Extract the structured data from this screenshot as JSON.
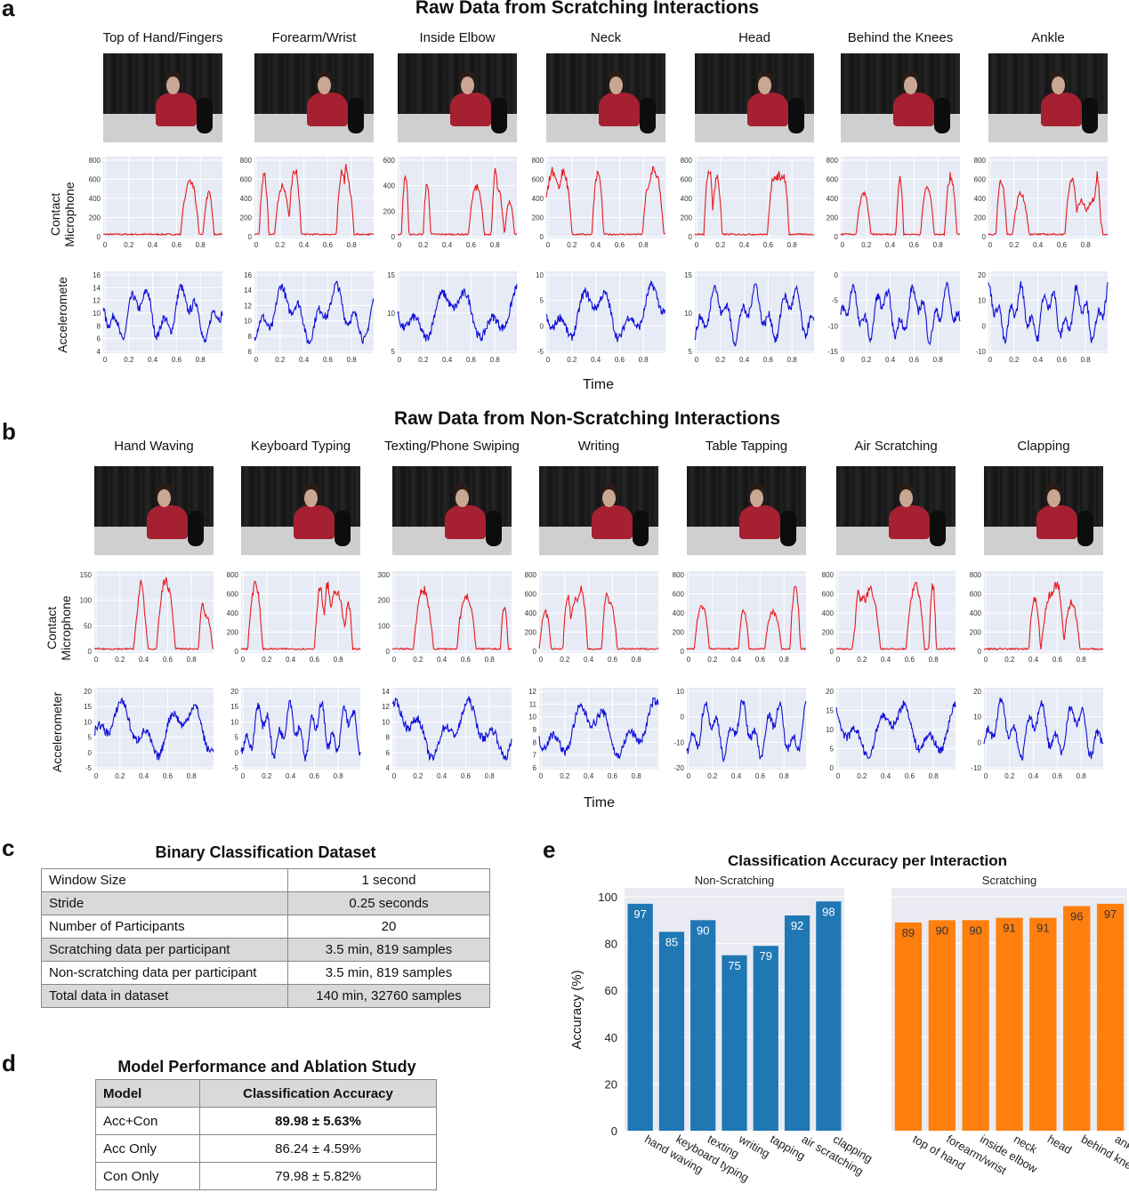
{
  "panel_a": {
    "letter": "a",
    "title": "Raw Data from Scratching Interactions",
    "columns": [
      "Top of Hand/Fingers",
      "Forearm/Wrist",
      "Inside Elbow",
      "Neck",
      "Head",
      "Behind the Knees",
      "Ankle"
    ],
    "row_label_mic_1": "Contact",
    "row_label_mic_2": "Microphone",
    "row_label_acc": "Acceleromete",
    "xlabel": "Time",
    "x_ticks": [
      "0",
      "0.2",
      "0.4",
      "0.6",
      "0.8"
    ],
    "mic_yticks": [
      [
        "0",
        "200",
        "400",
        "600",
        "800"
      ],
      [
        "0",
        "200",
        "400",
        "600",
        "800"
      ],
      [
        "0",
        "200",
        "400",
        "600"
      ],
      [
        "0",
        "200",
        "400",
        "600",
        "800"
      ],
      [
        "0",
        "200",
        "400",
        "600",
        "800"
      ],
      [
        "0",
        "200",
        "400",
        "600",
        "800"
      ],
      [
        "0",
        "200",
        "400",
        "600",
        "800"
      ]
    ],
    "acc_yticks": [
      [
        "4",
        "6",
        "8",
        "10",
        "12",
        "14",
        "16"
      ],
      [
        "6",
        "8",
        "10",
        "12",
        "14",
        "16"
      ],
      [
        "5",
        "10",
        "15"
      ],
      [
        "-5",
        "0",
        "5",
        "10"
      ],
      [
        "5",
        "10",
        "15"
      ],
      [
        "-15",
        "-10",
        "-5",
        "0"
      ],
      [
        "-10",
        "0",
        "10",
        "20"
      ]
    ]
  },
  "panel_b": {
    "letter": "b",
    "title": "Raw Data from Non-Scratching Interactions",
    "columns": [
      "Hand Waving",
      "Keyboard Typing",
      "Texting/Phone Swiping",
      "Writing",
      "Table Tapping",
      "Air Scratching",
      "Clapping"
    ],
    "row_label_mic_1": "Contact",
    "row_label_mic_2": "Microphone",
    "row_label_acc": "Accelerometer",
    "xlabel": "Time",
    "x_ticks": [
      "0",
      "0.2",
      "0.4",
      "0.6",
      "0.8"
    ],
    "mic_yticks": [
      [
        "0",
        "50",
        "100",
        "150"
      ],
      [
        "0",
        "200",
        "400",
        "600",
        "800"
      ],
      [
        "0",
        "100",
        "200",
        "300"
      ],
      [
        "0",
        "200",
        "400",
        "600",
        "800"
      ],
      [
        "0",
        "200",
        "400",
        "600",
        "800"
      ],
      [
        "0",
        "200",
        "400",
        "600",
        "800"
      ],
      [
        "0",
        "200",
        "400",
        "600",
        "800"
      ]
    ],
    "acc_yticks": [
      [
        "-5",
        "0",
        "5",
        "10",
        "15",
        "20"
      ],
      [
        "-5",
        "0",
        "5",
        "10",
        "15",
        "20"
      ],
      [
        "4",
        "6",
        "8",
        "10",
        "12",
        "14"
      ],
      [
        "6",
        "7",
        "8",
        "9",
        "10",
        "11",
        "12"
      ],
      [
        "-20",
        "-10",
        "0",
        "10"
      ],
      [
        "0",
        "5",
        "10",
        "15",
        "20"
      ],
      [
        "-10",
        "0",
        "10",
        "20"
      ]
    ]
  },
  "panel_c": {
    "letter": "c",
    "title": "Binary Classification Dataset",
    "rows": [
      [
        "Window Size",
        "1 second"
      ],
      [
        "Stride",
        "0.25 seconds"
      ],
      [
        "Number of Participants",
        "20"
      ],
      [
        "Scratching data per participant",
        "3.5 min, 819 samples"
      ],
      [
        "Non-scratching data per participant",
        "3.5 min, 819 samples"
      ],
      [
        "Total data in dataset",
        "140 min, 32760 samples"
      ]
    ]
  },
  "panel_d": {
    "letter": "d",
    "title": "Model Performance and Ablation Study",
    "headers": [
      "Model",
      "Classification Accuracy"
    ],
    "rows": [
      [
        "Acc+Con",
        "89.98 ± 5.63%"
      ],
      [
        "Acc Only",
        "86.24 ± 4.59%"
      ],
      [
        "Con Only",
        "79.98 ± 5.82%"
      ]
    ]
  },
  "panel_e": {
    "letter": "e",
    "chart_data": {
      "type": "bar",
      "title": "Classification Accuracy per Interaction",
      "ylabel": "Accuracy (%)",
      "ylim": [
        0,
        100
      ],
      "yticks": [
        0,
        20,
        40,
        60,
        80,
        100
      ],
      "grid": true,
      "subplots": [
        {
          "name": "Non-Scratching",
          "color": "#1f77b4",
          "categories": [
            "hand waving",
            "keyboard typing",
            "texting",
            "writing",
            "tapping",
            "air scratching",
            "clapping"
          ],
          "values": [
            97,
            85,
            90,
            75,
            79,
            92,
            98
          ]
        },
        {
          "name": "Scratching",
          "color": "#ff7f0e",
          "categories": [
            "top of hand",
            "forearm/wrist",
            "inside elbow",
            "neck",
            "head",
            "behind knees",
            "ankles"
          ],
          "values": [
            89,
            90,
            90,
            91,
            91,
            96,
            97
          ]
        }
      ]
    }
  },
  "colors": {
    "mic": "#e8191e",
    "acc": "#1010d8",
    "plot_bg": "#e6ebf5"
  }
}
